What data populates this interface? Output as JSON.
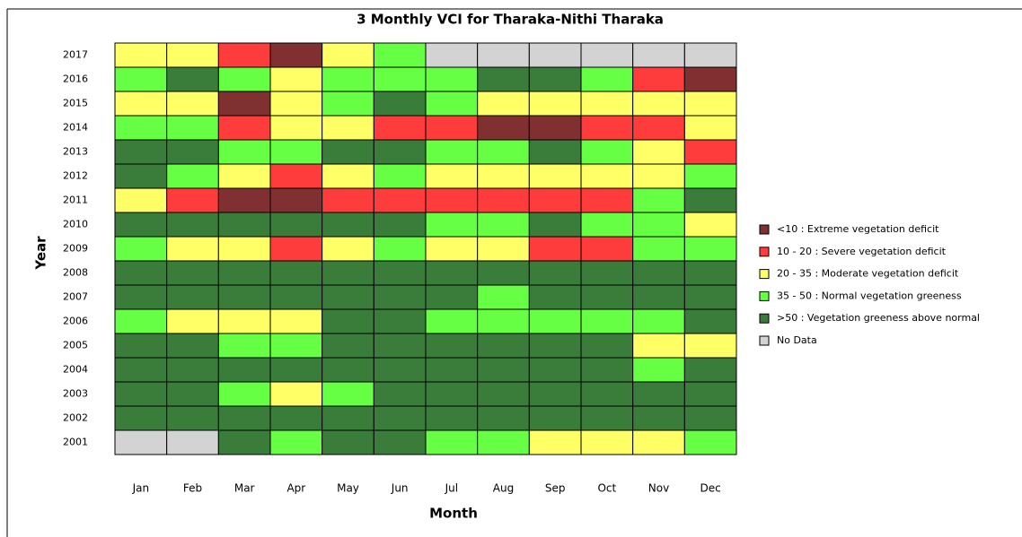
{
  "chart_data": {
    "type": "heatmap",
    "title": "3 Monthly VCI for Tharaka-Nithi Tharaka",
    "xlabel": "Month",
    "ylabel": "Year",
    "x": [
      "Jan",
      "Feb",
      "Mar",
      "Apr",
      "May",
      "Jun",
      "Jul",
      "Aug",
      "Sep",
      "Oct",
      "Nov",
      "Dec"
    ],
    "y": [
      "2017",
      "2016",
      "2015",
      "2014",
      "2013",
      "2012",
      "2011",
      "2010",
      "2009",
      "2008",
      "2007",
      "2006",
      "2005",
      "2004",
      "2003",
      "2002",
      "2001"
    ],
    "classes": [
      {
        "name": "<10 : Extreme vegetation deficit",
        "color": "#803030"
      },
      {
        "name": "10 - 20 : Severe vegetation deficit",
        "color": "#ff3c3c"
      },
      {
        "name": "20 - 35 : Moderate vegetation deficit",
        "color": "#ffff66"
      },
      {
        "name": "35 - 50 : Normal vegetation greeness",
        "color": "#66ff44"
      },
      {
        "name": ">50 : Vegetation greeness above normal",
        "color": "#3a7d3a"
      },
      {
        "name": "No Data",
        "color": "#d3d3d3"
      }
    ],
    "z": [
      [
        2,
        2,
        1,
        0,
        2,
        3,
        5,
        5,
        5,
        5,
        5,
        5
      ],
      [
        3,
        4,
        3,
        2,
        3,
        3,
        3,
        4,
        4,
        3,
        1,
        0
      ],
      [
        2,
        2,
        0,
        2,
        3,
        4,
        3,
        2,
        2,
        2,
        2,
        2
      ],
      [
        3,
        3,
        1,
        2,
        2,
        1,
        1,
        0,
        0,
        1,
        1,
        2
      ],
      [
        4,
        4,
        3,
        3,
        4,
        4,
        3,
        3,
        4,
        3,
        2,
        1
      ],
      [
        4,
        3,
        2,
        1,
        2,
        3,
        2,
        2,
        2,
        2,
        2,
        3
      ],
      [
        2,
        1,
        0,
        0,
        1,
        1,
        1,
        1,
        1,
        1,
        3,
        4
      ],
      [
        4,
        4,
        4,
        4,
        4,
        4,
        3,
        3,
        4,
        3,
        3,
        2
      ],
      [
        3,
        2,
        2,
        1,
        2,
        3,
        2,
        2,
        1,
        1,
        3,
        3
      ],
      [
        4,
        4,
        4,
        4,
        4,
        4,
        4,
        4,
        4,
        4,
        4,
        4
      ],
      [
        4,
        4,
        4,
        4,
        4,
        4,
        4,
        3,
        4,
        4,
        4,
        4
      ],
      [
        3,
        2,
        2,
        2,
        4,
        4,
        3,
        3,
        3,
        3,
        3,
        4
      ],
      [
        4,
        4,
        3,
        3,
        4,
        4,
        4,
        4,
        4,
        4,
        2,
        2
      ],
      [
        4,
        4,
        4,
        4,
        4,
        4,
        4,
        4,
        4,
        4,
        3,
        4
      ],
      [
        4,
        4,
        3,
        2,
        3,
        4,
        4,
        4,
        4,
        4,
        4,
        4
      ],
      [
        4,
        4,
        4,
        4,
        4,
        4,
        4,
        4,
        4,
        4,
        4,
        4
      ],
      [
        5,
        5,
        4,
        3,
        4,
        4,
        3,
        3,
        2,
        2,
        2,
        3
      ]
    ]
  }
}
